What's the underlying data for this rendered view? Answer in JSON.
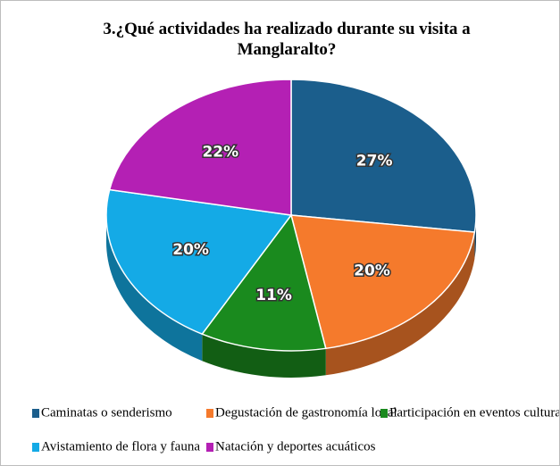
{
  "chart_data": {
    "type": "pie",
    "title": "3.¿Qué actividades ha realizado durante su visita a Manglaralto?",
    "categories": [
      "Caminatas o senderismo",
      "Degustación de gastronomía local",
      "Participación en eventos culturales",
      "Avistamiento de flora y fauna",
      "Natación y deportes acuáticos"
    ],
    "values": [
      27,
      20,
      11,
      20,
      22
    ],
    "value_labels": [
      "27%",
      "20%",
      "11%",
      "20%",
      "22%"
    ],
    "colors": [
      "#1b5e8c",
      "#f57a2c",
      "#1a8a1e",
      "#14aae6",
      "#b420b4"
    ],
    "legend": "bottom"
  }
}
